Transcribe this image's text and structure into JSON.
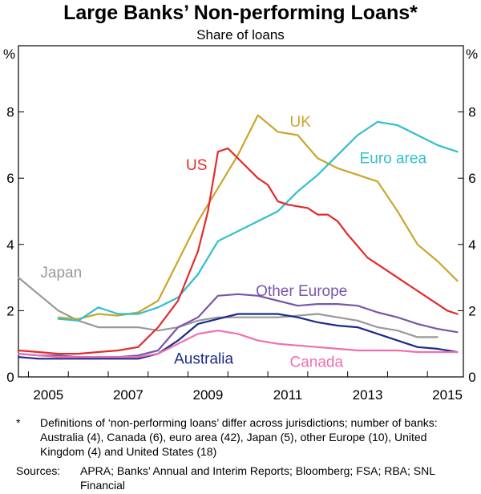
{
  "header": {
    "title": "Large Banks’ Non-performing Loans*",
    "subtitle": "Share of loans"
  },
  "footer": {
    "footnote_mark": "*",
    "footnote": "Definitions of ‘non-performing loans’ differ across jurisdictions; number of banks: Australia (4), Canada (6), euro area (42), Japan (5), other Europe (10), United Kingdom (4) and United States (18)",
    "sources_label": "Sources:",
    "sources": "APRA; Banks’ Annual and Interim Reports; Bloomberg; FSA; RBA; SNL Financial"
  },
  "chart_data": {
    "type": "line",
    "title": "Large Banks’ Non-performing Loans*",
    "subtitle": "Share of loans",
    "y_unit_left": "%",
    "y_unit_right": "%",
    "ylim": [
      0,
      10
    ],
    "yticks": [
      "0",
      "2",
      "4",
      "6",
      "8"
    ],
    "xlim": [
      2004.75,
      2015.9
    ],
    "xticks": [
      "2005",
      "2007",
      "2009",
      "2011",
      "2013",
      "2015"
    ],
    "grid": false,
    "legend": "inline labels",
    "series": [
      {
        "name": "Japan",
        "color": "#999999",
        "x": [
          2004.75,
          2005.25,
          2005.75,
          2006.25,
          2006.75,
          2007.25,
          2007.75,
          2008.25,
          2008.75,
          2009.25,
          2009.75,
          2010.25,
          2010.75,
          2011.25,
          2011.75,
          2012.25,
          2012.75,
          2013.25,
          2013.75,
          2014.25,
          2014.75,
          2015.25
        ],
        "y": [
          3.0,
          2.5,
          2.0,
          1.7,
          1.5,
          1.5,
          1.5,
          1.4,
          1.5,
          1.7,
          1.8,
          1.8,
          1.8,
          1.8,
          1.85,
          1.9,
          1.8,
          1.7,
          1.5,
          1.4,
          1.2,
          1.2
        ]
      },
      {
        "name": "UK",
        "color": "#c9a62c",
        "x": [
          2005.75,
          2006.25,
          2006.75,
          2007.25,
          2007.75,
          2008.25,
          2008.75,
          2009.25,
          2009.75,
          2010.25,
          2010.75,
          2011.25,
          2011.75,
          2012.25,
          2012.75,
          2013.25,
          2013.75,
          2014.25,
          2014.75,
          2015.25,
          2015.75
        ],
        "y": [
          1.8,
          1.75,
          1.9,
          1.85,
          1.95,
          2.3,
          3.5,
          4.7,
          5.7,
          6.7,
          7.9,
          7.4,
          7.3,
          6.6,
          6.3,
          6.1,
          5.9,
          5.0,
          4.0,
          3.5,
          2.9
        ]
      },
      {
        "name": "Euro area",
        "color": "#2fbfcb",
        "x": [
          2005.75,
          2006.25,
          2006.75,
          2007.25,
          2007.75,
          2008.25,
          2008.75,
          2009.25,
          2009.75,
          2010.25,
          2010.75,
          2011.25,
          2011.75,
          2012.25,
          2012.75,
          2013.25,
          2013.75,
          2014.25,
          2014.75,
          2015.25,
          2015.75
        ],
        "y": [
          1.75,
          1.7,
          2.1,
          1.9,
          1.9,
          2.1,
          2.4,
          3.1,
          4.1,
          4.4,
          4.7,
          5.0,
          5.6,
          6.1,
          6.7,
          7.3,
          7.7,
          7.6,
          7.3,
          7.0,
          6.8
        ]
      },
      {
        "name": "US",
        "color": "#e22b2b",
        "x": [
          2004.75,
          2005.25,
          2005.75,
          2006.25,
          2006.75,
          2007.25,
          2007.75,
          2008.25,
          2008.75,
          2009.25,
          2009.5,
          2009.75,
          2010.0,
          2010.5,
          2010.75,
          2011.0,
          2011.25,
          2011.5,
          2011.75,
          2012.0,
          2012.25,
          2012.5,
          2012.75,
          2013.0,
          2013.5,
          2014.0,
          2014.5,
          2015.0,
          2015.5,
          2015.75
        ],
        "y": [
          0.8,
          0.75,
          0.7,
          0.7,
          0.75,
          0.8,
          0.9,
          1.5,
          2.3,
          3.8,
          5.0,
          6.8,
          6.9,
          6.3,
          6.0,
          5.8,
          5.3,
          5.2,
          5.15,
          5.1,
          4.9,
          4.9,
          4.7,
          4.3,
          3.6,
          3.2,
          2.8,
          2.4,
          2.0,
          1.9
        ]
      },
      {
        "name": "Other Europe",
        "color": "#7a56a8",
        "x": [
          2004.75,
          2005.25,
          2005.75,
          2006.25,
          2006.75,
          2007.25,
          2007.75,
          2008.25,
          2008.75,
          2009.25,
          2009.75,
          2010.25,
          2010.75,
          2011.25,
          2011.75,
          2012.25,
          2012.75,
          2013.25,
          2013.75,
          2014.25,
          2014.75,
          2015.25,
          2015.75
        ],
        "y": [
          0.7,
          0.65,
          0.65,
          0.6,
          0.6,
          0.6,
          0.65,
          0.8,
          1.5,
          1.8,
          2.45,
          2.5,
          2.45,
          2.3,
          2.15,
          2.2,
          2.2,
          2.15,
          1.95,
          1.8,
          1.6,
          1.45,
          1.35
        ]
      },
      {
        "name": "Australia",
        "color": "#1c2b8a",
        "x": [
          2004.75,
          2005.25,
          2005.75,
          2006.25,
          2006.75,
          2007.25,
          2007.75,
          2008.25,
          2008.75,
          2009.25,
          2009.75,
          2010.25,
          2010.75,
          2011.25,
          2011.75,
          2012.25,
          2012.75,
          2013.25,
          2013.75,
          2014.25,
          2014.75,
          2015.25,
          2015.75
        ],
        "y": [
          0.6,
          0.55,
          0.55,
          0.55,
          0.55,
          0.55,
          0.55,
          0.7,
          1.1,
          1.6,
          1.75,
          1.9,
          1.9,
          1.9,
          1.8,
          1.65,
          1.55,
          1.5,
          1.3,
          1.1,
          0.9,
          0.85,
          0.75
        ]
      },
      {
        "name": "Canada",
        "color": "#ef6fb0",
        "x": [
          2004.75,
          2005.25,
          2005.75,
          2006.25,
          2006.75,
          2007.25,
          2007.75,
          2008.25,
          2008.75,
          2009.25,
          2009.75,
          2010.25,
          2010.75,
          2011.25,
          2011.75,
          2012.25,
          2012.75,
          2013.25,
          2013.75,
          2014.25,
          2014.75,
          2015.25,
          2015.75
        ],
        "y": [
          0.7,
          0.65,
          0.6,
          0.6,
          0.6,
          0.6,
          0.6,
          0.7,
          1.0,
          1.3,
          1.4,
          1.3,
          1.1,
          1.0,
          0.95,
          0.9,
          0.85,
          0.8,
          0.8,
          0.8,
          0.75,
          0.75,
          0.75
        ]
      }
    ]
  }
}
